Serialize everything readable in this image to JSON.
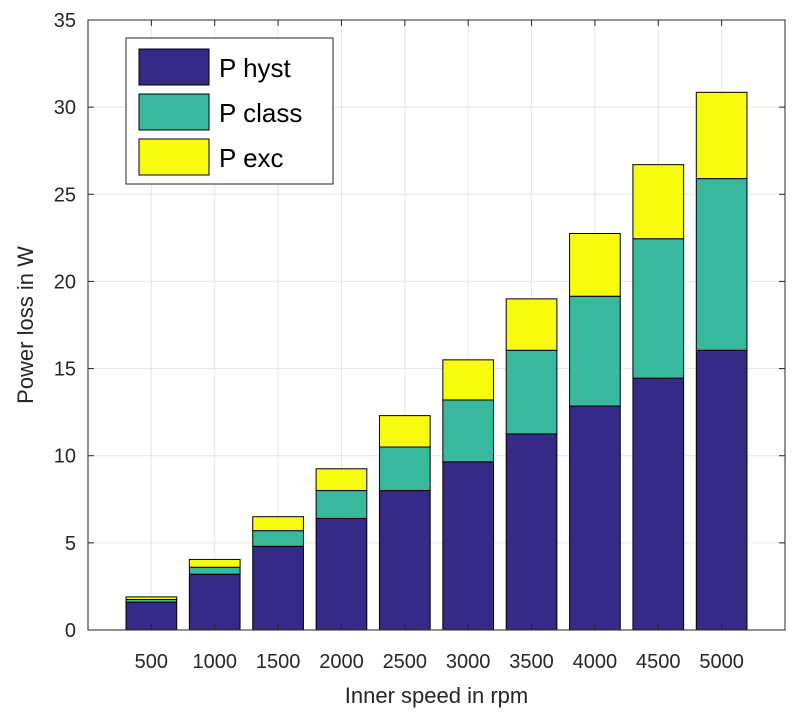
{
  "chart_data": {
    "type": "bar",
    "stacked": true,
    "categories": [
      "500",
      "1000",
      "1500",
      "2000",
      "2500",
      "3000",
      "3500",
      "4000",
      "4500",
      "5000"
    ],
    "series": [
      {
        "name": "P hyst",
        "color": "#352A87",
        "values": [
          1.6,
          3.2,
          4.8,
          6.4,
          8.0,
          9.65,
          11.25,
          12.85,
          14.45,
          16.05
        ]
      },
      {
        "name": "P class",
        "color": "#38B99E",
        "values": [
          0.15,
          0.4,
          0.9,
          1.6,
          2.5,
          3.55,
          4.8,
          6.3,
          8.0,
          9.85
        ]
      },
      {
        "name": "P exc",
        "color": "#F9FB0E",
        "values": [
          0.15,
          0.45,
          0.8,
          1.25,
          1.8,
          2.3,
          2.95,
          3.6,
          4.25,
          4.95
        ]
      }
    ],
    "xlabel": "Inner speed in rpm",
    "ylabel": "Power loss in W",
    "ylim": [
      0,
      35
    ],
    "yticks": [
      0,
      5,
      10,
      15,
      20,
      25,
      30,
      35
    ],
    "grid": true,
    "legend_position": "top-left"
  }
}
